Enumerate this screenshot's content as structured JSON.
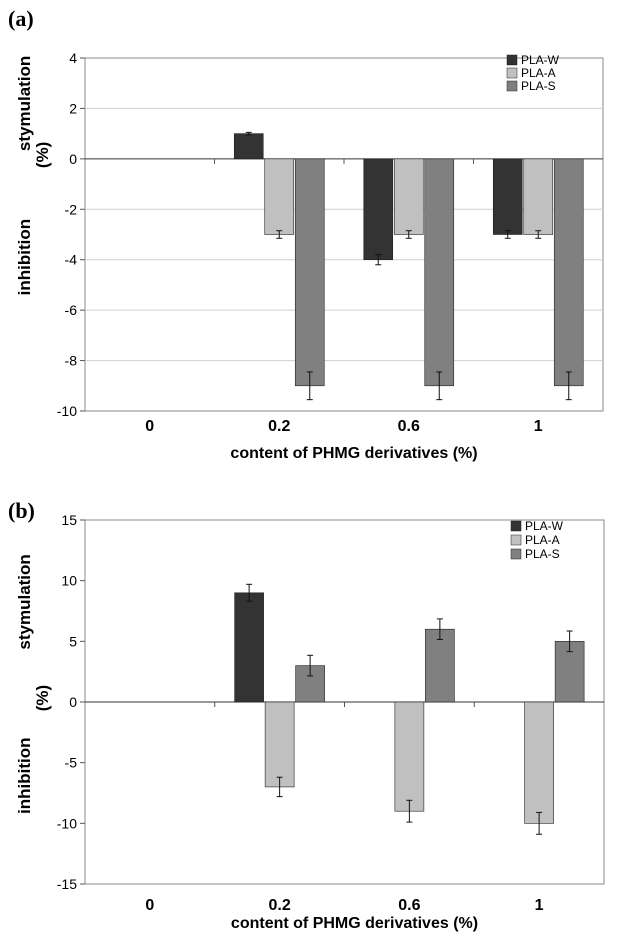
{
  "chart_data": [
    {
      "panel_label": "(a)",
      "type": "bar",
      "categories": [
        "0",
        "0.2",
        "0.6",
        "1"
      ],
      "series": [
        {
          "name": "PLA-W",
          "color": "#333333",
          "values": [
            null,
            1,
            -4,
            -3
          ],
          "errors": [
            null,
            0.05,
            0.2,
            0.15
          ]
        },
        {
          "name": "PLA-A",
          "color": "#c0c0c0",
          "values": [
            null,
            -3,
            -3,
            -3
          ],
          "errors": [
            null,
            0.15,
            0.15,
            0.15
          ]
        },
        {
          "name": "PLA-S",
          "color": "#808080",
          "values": [
            null,
            -9,
            -9,
            -9
          ],
          "errors": [
            null,
            0.55,
            0.55,
            0.55
          ]
        }
      ],
      "ylim": [
        -10,
        4
      ],
      "yticks": [
        "4",
        "2",
        "0",
        "-2",
        "-4",
        "-6",
        "-8",
        "-10"
      ],
      "ylabel_upper": "stymulation",
      "ylabel_mid": "(%)",
      "ylabel_lower": "inhibition",
      "xlabel": "content of PHMG derivatives (%)",
      "legend": "top-right",
      "grid": true
    },
    {
      "panel_label": "(b)",
      "type": "bar",
      "categories": [
        "0",
        "0.2",
        "0.6",
        "1"
      ],
      "series": [
        {
          "name": "PLA-W",
          "color": "#333333",
          "values": [
            null,
            9,
            null,
            null
          ],
          "errors": [
            null,
            0.7,
            null,
            null
          ]
        },
        {
          "name": "PLA-A",
          "color": "#c0c0c0",
          "values": [
            null,
            -7,
            -9,
            -10
          ],
          "errors": [
            null,
            0.8,
            0.9,
            0.9
          ]
        },
        {
          "name": "PLA-S",
          "color": "#808080",
          "values": [
            null,
            3,
            6,
            5
          ],
          "errors": [
            null,
            0.85,
            0.85,
            0.85
          ]
        }
      ],
      "ylim": [
        -15,
        15
      ],
      "yticks": [
        "15",
        "10",
        "5",
        "0",
        "-5",
        "-10",
        "-15"
      ],
      "ylabel_upper": "stymulation",
      "ylabel_mid": "(%)",
      "ylabel_lower": "inhibition",
      "xlabel": "content of PHMG derivatives (%)",
      "legend": "top-right",
      "grid": false
    }
  ]
}
